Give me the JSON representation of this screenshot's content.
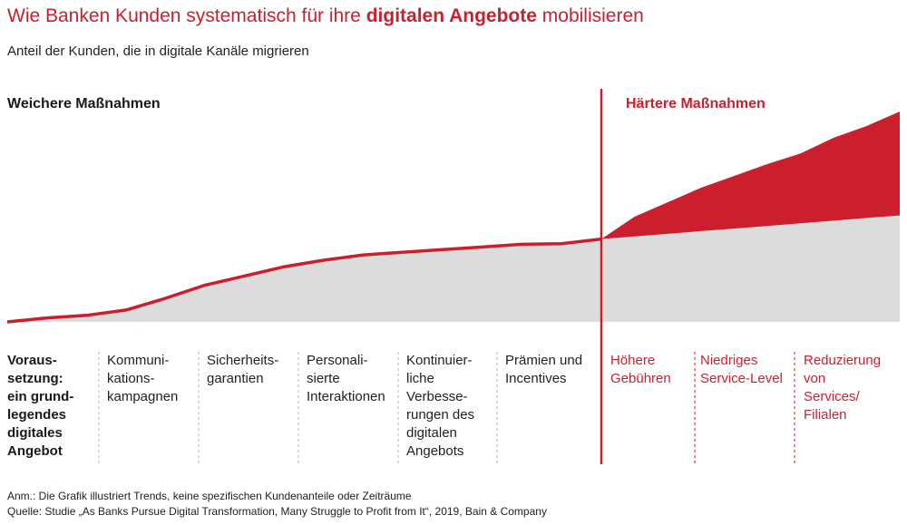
{
  "title": {
    "prefix": "Wie Banken Kunden systematisch für ihre ",
    "bold": "digitalen Angebote",
    "suffix": " mobilisieren"
  },
  "subtitle": "Anteil der Kunden, die in digitale Kanäle migrieren",
  "phases": {
    "soft": "Weichere Maßnahmen",
    "hard": "Härtere Maßnahmen"
  },
  "colors": {
    "accent": "#cc1f2e",
    "area": "#dcdcdc",
    "divider": "#b5b5b5"
  },
  "columns": [
    {
      "label": "Voraus-\nsetzung:\nein grund-\nlegendes\ndigitales\nAngebot"
    },
    {
      "label": "Kommuni-\nkations-\nkampagnen"
    },
    {
      "label": "Sicherheits-\ngarantien"
    },
    {
      "label": "Personali-\nsierte\nInteraktionen"
    },
    {
      "label": "Kontinuier-\nliche\nVerbesse-\nrungen des\ndigitalen\nAngebots"
    },
    {
      "label": "Prämien und\nIncentives"
    },
    {
      "label": "Höhere\nGebühren"
    },
    {
      "label": "Niedriges\nService-Level"
    },
    {
      "label": "Reduzierung\nvon\nServices/\nFilialen"
    }
  ],
  "notes": {
    "anm": "Anm.: Die Grafik illustriert Trends, keine spezifischen Kundenanteile oder Zeiträume",
    "source": "Quelle: Studie „As Banks Pursue Digital Transformation, Many Struggle to Profit from It“, 2019, Bain & Company"
  },
  "chart_data": {
    "type": "area",
    "note": "Illustrative trend, no numeric axes",
    "soft_curve": [
      0,
      3,
      5,
      9,
      18,
      28,
      35,
      42,
      47,
      51,
      53,
      55,
      57,
      59,
      59.5,
      63
    ],
    "hard_upper": [
      63,
      80,
      91,
      102,
      111,
      120,
      128,
      140,
      149,
      160
    ],
    "hard_baseline": [
      63,
      65,
      67,
      69,
      71,
      73,
      75,
      77,
      79,
      81
    ]
  }
}
